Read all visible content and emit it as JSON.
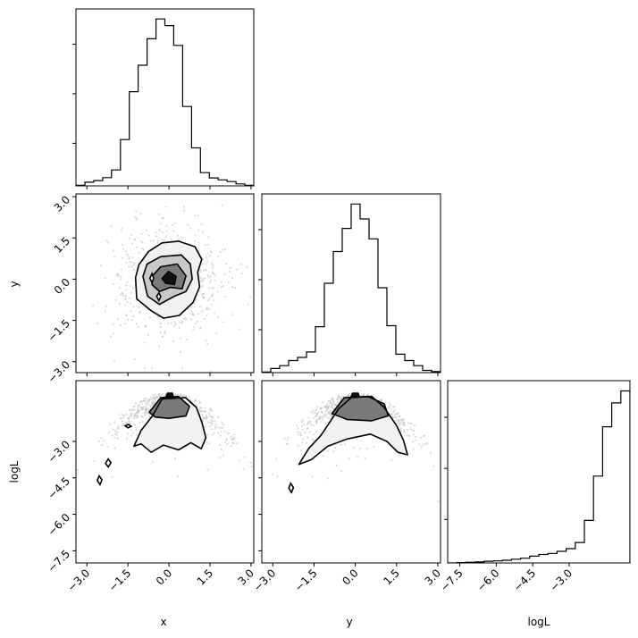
{
  "chart_data": {
    "type": "corner",
    "parameters": [
      "x",
      "y",
      "logL"
    ],
    "x_label": "x",
    "y_label": "y",
    "logL_label": "logL",
    "xy_ticks": [
      "−3.0",
      "−1.5",
      "0.0",
      "1.5",
      "3.0"
    ],
    "logL_ticks": [
      "−7.5",
      "−6.0",
      "−4.5",
      "−3.0"
    ],
    "xy_tick_values": [
      -3.0,
      -1.5,
      0.0,
      1.5,
      3.0
    ],
    "logL_tick_values": [
      -7.5,
      -6.0,
      -4.5,
      -3.0
    ],
    "xy_range": [
      -3.4,
      3.1
    ],
    "logL_range": [
      -8.0,
      -0.5
    ],
    "hist_x": {
      "edges_start": -3.4,
      "bin_width": 0.325,
      "counts": [
        2,
        11,
        16,
        25,
        48,
        140,
        285,
        365,
        445,
        505,
        485,
        425,
        240,
        115,
        40,
        24,
        18,
        13,
        6,
        2
      ]
    },
    "hist_y": {
      "edges_start": -3.4,
      "bin_width": 0.325,
      "counts": [
        2,
        13,
        22,
        38,
        48,
        65,
        145,
        282,
        382,
        455,
        532,
        485,
        422,
        268,
        148,
        58,
        38,
        22,
        7,
        3
      ]
    },
    "hist_logL": {
      "edges_start": -8.0,
      "bin_width": 0.375,
      "counts": [
        0,
        1,
        2,
        3,
        5,
        6,
        8,
        11,
        14,
        20,
        25,
        28,
        34,
        42,
        60,
        125,
        255,
        400,
        470,
        505
      ]
    },
    "contour_xy": {
      "outer": [
        [
          -1.22,
          0.05
        ],
        [
          -1.1,
          0.52
        ],
        [
          -0.75,
          1.0
        ],
        [
          -0.25,
          1.32
        ],
        [
          0.35,
          1.38
        ],
        [
          0.95,
          1.18
        ],
        [
          1.2,
          0.72
        ],
        [
          1.05,
          0.25
        ],
        [
          1.12,
          -0.28
        ],
        [
          0.88,
          -0.85
        ],
        [
          0.38,
          -1.32
        ],
        [
          -0.2,
          -1.42
        ],
        [
          -0.65,
          -1.15
        ],
        [
          -1.18,
          -0.72
        ]
      ],
      "middle": [
        [
          -0.95,
          0.1
        ],
        [
          -0.8,
          0.55
        ],
        [
          -0.3,
          0.82
        ],
        [
          0.45,
          0.88
        ],
        [
          0.78,
          0.55
        ],
        [
          0.85,
          0.0
        ],
        [
          0.62,
          -0.45
        ],
        [
          0.2,
          -0.62
        ],
        [
          -0.35,
          -0.92
        ],
        [
          -0.78,
          -0.62
        ]
      ],
      "inner": [
        [
          -0.6,
          0.12
        ],
        [
          -0.3,
          0.45
        ],
        [
          0.3,
          0.55
        ],
        [
          0.62,
          0.12
        ],
        [
          0.48,
          -0.35
        ],
        [
          0.05,
          -0.3
        ],
        [
          -0.35,
          -0.45
        ],
        [
          -0.62,
          -0.2
        ]
      ],
      "core": [
        [
          -0.25,
          0.02
        ],
        [
          -0.02,
          0.28
        ],
        [
          0.26,
          0.1
        ],
        [
          0.2,
          -0.2
        ],
        [
          -0.12,
          -0.15
        ]
      ],
      "islands": [
        [
          [
            -0.7,
            0.03
          ],
          [
            -0.62,
            0.2
          ],
          [
            -0.56,
            0.03
          ],
          [
            -0.62,
            -0.12
          ]
        ],
        [
          [
            -0.45,
            -0.62
          ],
          [
            -0.37,
            -0.5
          ],
          [
            -0.3,
            -0.62
          ],
          [
            -0.37,
            -0.78
          ]
        ]
      ]
    },
    "contour_xlogL": {
      "outer": [
        [
          -1.28,
          -3.2
        ],
        [
          -1.02,
          -2.55
        ],
        [
          -0.6,
          -1.95
        ],
        [
          -0.25,
          -1.25
        ],
        [
          0.6,
          -1.2
        ],
        [
          1.0,
          -1.6
        ],
        [
          1.2,
          -2.2
        ],
        [
          1.35,
          -2.85
        ],
        [
          1.18,
          -3.3
        ],
        [
          0.8,
          -3.05
        ],
        [
          0.35,
          -3.35
        ],
        [
          -0.2,
          -3.15
        ],
        [
          -0.65,
          -3.45
        ],
        [
          -1.02,
          -3.1
        ]
      ],
      "inner": [
        [
          -0.72,
          -1.8
        ],
        [
          -0.3,
          -1.2
        ],
        [
          0.35,
          -1.15
        ],
        [
          0.75,
          -1.55
        ],
        [
          0.62,
          -1.95
        ],
        [
          0.0,
          -2.05
        ],
        [
          -0.5,
          -2.0
        ]
      ],
      "core": [
        [
          -0.1,
          -1.15
        ],
        [
          -0.05,
          -1.02
        ],
        [
          0.12,
          -1.02
        ],
        [
          0.16,
          -1.15
        ]
      ],
      "islands": [
        [
          [
            -1.6,
            -2.36
          ],
          [
            -1.48,
            -2.3
          ],
          [
            -1.38,
            -2.38
          ],
          [
            -1.5,
            -2.44
          ]
        ],
        [
          [
            -2.32,
            -3.9
          ],
          [
            -2.22,
            -3.72
          ],
          [
            -2.12,
            -3.88
          ],
          [
            -2.22,
            -4.05
          ]
        ],
        [
          [
            -2.62,
            -4.6
          ],
          [
            -2.55,
            -4.42
          ],
          [
            -2.45,
            -4.58
          ],
          [
            -2.52,
            -4.78
          ]
        ]
      ]
    },
    "contour_ylogL": {
      "outer": [
        [
          -2.05,
          -3.95
        ],
        [
          -1.7,
          -3.3
        ],
        [
          -1.25,
          -2.75
        ],
        [
          -0.6,
          -1.65
        ],
        [
          -0.15,
          -1.2
        ],
        [
          0.6,
          -1.15
        ],
        [
          1.05,
          -1.6
        ],
        [
          1.5,
          -2.35
        ],
        [
          1.75,
          -2.95
        ],
        [
          1.9,
          -3.55
        ],
        [
          1.55,
          -3.45
        ],
        [
          1.15,
          -3.0
        ],
        [
          0.55,
          -2.7
        ],
        [
          -0.3,
          -2.9
        ],
        [
          -1.0,
          -3.2
        ],
        [
          -1.6,
          -3.75
        ]
      ],
      "inner": [
        [
          -0.85,
          -1.85
        ],
        [
          -0.4,
          -1.2
        ],
        [
          0.45,
          -1.15
        ],
        [
          1.05,
          -1.45
        ],
        [
          1.2,
          -1.95
        ],
        [
          0.6,
          -2.15
        ],
        [
          -0.3,
          -2.1
        ]
      ],
      "core": [
        [
          -0.15,
          -1.15
        ],
        [
          -0.1,
          -1.02
        ],
        [
          0.1,
          -1.02
        ],
        [
          0.15,
          -1.15
        ]
      ],
      "islands": [
        [
          [
            -2.42,
            -4.92
          ],
          [
            -2.35,
            -4.72
          ],
          [
            -2.25,
            -4.9
          ],
          [
            -2.32,
            -5.1
          ]
        ]
      ]
    },
    "grid": false,
    "legend": "none"
  }
}
